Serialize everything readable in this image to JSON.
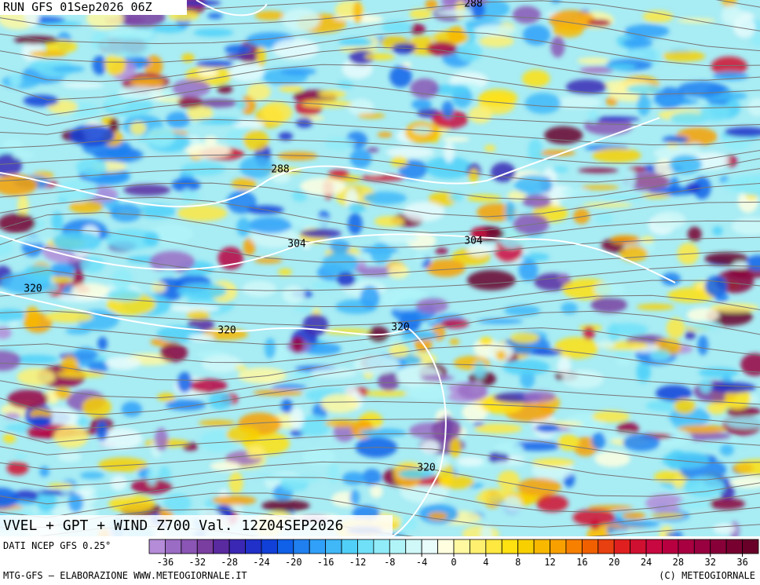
{
  "header": {
    "run": "RUN GFS 01Sep2026 06Z"
  },
  "map": {
    "title": "VVEL + GPT + WIND Z700 Val. 12Z04SEP2026",
    "contour_labels": [
      "288",
      "288",
      "304",
      "304",
      "320",
      "320",
      "320",
      "320"
    ]
  },
  "legend": {
    "source": "DATI NCEP GFS 0.25°",
    "lim": [
      -38,
      38
    ],
    "ticks": [
      -36,
      -32,
      -28,
      -24,
      -20,
      -16,
      -12,
      -8,
      -4,
      0,
      4,
      8,
      12,
      16,
      20,
      24,
      28,
      32,
      36
    ],
    "colors": [
      "#b48cd8",
      "#9a6cc4",
      "#8a55b4",
      "#7a3ea0",
      "#5a2aa0",
      "#3a28b4",
      "#2030c8",
      "#1040d8",
      "#1060e8",
      "#2080f0",
      "#30a0f8",
      "#40b8f8",
      "#50d0f8",
      "#70e0f8",
      "#90ecf8",
      "#b0f4f8",
      "#d0f8f8",
      "#e8fcfc",
      "#ffffe0",
      "#fff8a0",
      "#fff070",
      "#ffe840",
      "#ffe010",
      "#f8d000",
      "#f8b800",
      "#f8a000",
      "#f88000",
      "#f06000",
      "#e84010",
      "#e02020",
      "#d01030",
      "#c80840",
      "#b80040",
      "#a80040",
      "#980040",
      "#880038",
      "#780030",
      "#680028"
    ]
  },
  "footer": {
    "left": "MTG-GFS — ELABORAZIONE WWW.METEOGIORNALE.IT",
    "right": "(C) METEOGIORNALE"
  }
}
